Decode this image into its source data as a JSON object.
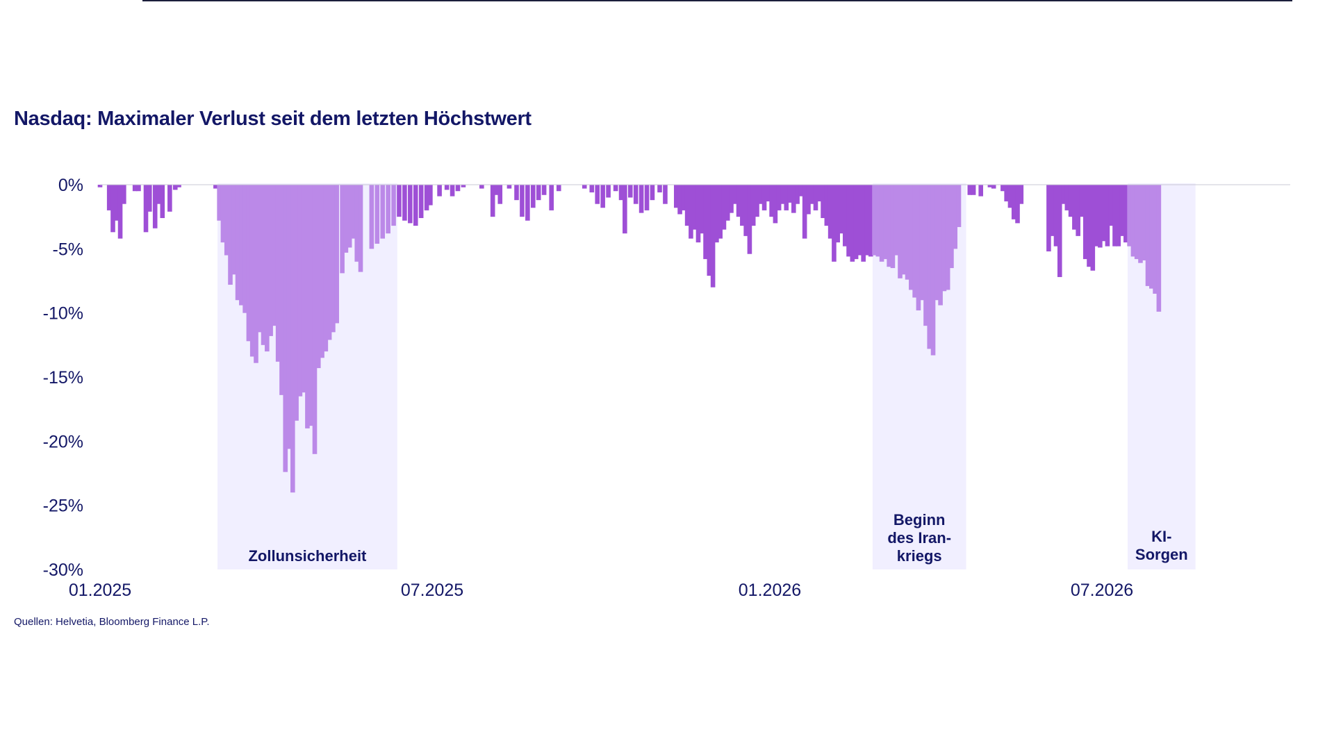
{
  "title": "Nasdaq: Maximaler Verlust seit dem letzten Höchstwert",
  "source": "Quellen: Helvetia, Bloomberg Finance L.P.",
  "colors": {
    "title": "#131766",
    "bar_dark": "#9e4fd6",
    "bar_light": "#bb89e8",
    "shade": "#f1efff",
    "axis_text": "#131766"
  },
  "chart_data": {
    "type": "bar",
    "title": "Nasdaq: Maximaler Verlust seit dem letzten Höchstwert",
    "xlabel": "",
    "ylabel": "",
    "ylim": [
      -30,
      0
    ],
    "y_ticks": [
      0,
      -5,
      -10,
      -15,
      -20,
      -25,
      -30
    ],
    "y_tick_labels": [
      "0%",
      "-5%",
      "-10%",
      "-15%",
      "-20%",
      "-25%",
      "-30%"
    ],
    "x_ticks": [
      "2025-01-01",
      "2025-07-01",
      "2026-01-01",
      "2026-07-01"
    ],
    "x_tick_labels": [
      "01.2025",
      "07.2025",
      "01.2026",
      "07.2026"
    ],
    "x_range": [
      "2025-01-01",
      "2026-08-15"
    ],
    "grid": false,
    "legend": "none",
    "shaded_periods": [
      {
        "start": "2025-03-06",
        "end": "2025-06-12",
        "label": "Zollunsicherheit"
      },
      {
        "start": "2026-02-26",
        "end": "2026-04-18",
        "label": "Beginn des Iran-kriegs"
      },
      {
        "start": "2026-07-15",
        "end": "2026-08-21",
        "label": "KI-Sorgen"
      }
    ],
    "series": [
      {
        "points": [
          {
            "x": "2025-01-01",
            "y": -0.2
          },
          {
            "x": "2025-01-06",
            "y": -2.0
          },
          {
            "x": "2025-01-08",
            "y": -3.7
          },
          {
            "x": "2025-01-10",
            "y": -2.8
          },
          {
            "x": "2025-01-12",
            "y": -4.2
          },
          {
            "x": "2025-01-14",
            "y": -1.5
          },
          {
            "x": "2025-01-20",
            "y": -0.5
          },
          {
            "x": "2025-01-22",
            "y": -0.5
          },
          {
            "x": "2025-01-26",
            "y": -3.7
          },
          {
            "x": "2025-01-28",
            "y": -2.1
          },
          {
            "x": "2025-01-31",
            "y": -3.4
          },
          {
            "x": "2025-02-02",
            "y": -1.5
          },
          {
            "x": "2025-02-04",
            "y": -2.6
          },
          {
            "x": "2025-02-08",
            "y": -2.1
          },
          {
            "x": "2025-02-11",
            "y": -0.4
          },
          {
            "x": "2025-02-13",
            "y": -0.2
          },
          {
            "x": "2025-03-05",
            "y": -0.3
          },
          {
            "x": "2025-03-07",
            "y": -2.8
          },
          {
            "x": "2025-03-09",
            "y": -4.5
          },
          {
            "x": "2025-03-11",
            "y": -5.5
          },
          {
            "x": "2025-03-13",
            "y": -7.8
          },
          {
            "x": "2025-03-15",
            "y": -7.0
          },
          {
            "x": "2025-03-17",
            "y": -9.0
          },
          {
            "x": "2025-03-19",
            "y": -9.4
          },
          {
            "x": "2025-03-21",
            "y": -10.0
          },
          {
            "x": "2025-03-23",
            "y": -12.2
          },
          {
            "x": "2025-03-25",
            "y": -13.4
          },
          {
            "x": "2025-03-27",
            "y": -13.9
          },
          {
            "x": "2025-03-29",
            "y": -11.5
          },
          {
            "x": "2025-03-31",
            "y": -12.5
          },
          {
            "x": "2025-04-02",
            "y": -13.0
          },
          {
            "x": "2025-04-04",
            "y": -11.8
          },
          {
            "x": "2025-04-06",
            "y": -11.0
          },
          {
            "x": "2025-04-08",
            "y": -13.8
          },
          {
            "x": "2025-04-10",
            "y": -16.4
          },
          {
            "x": "2025-04-12",
            "y": -22.4
          },
          {
            "x": "2025-04-14",
            "y": -20.6
          },
          {
            "x": "2025-04-16",
            "y": -24.0
          },
          {
            "x": "2025-04-18",
            "y": -18.4
          },
          {
            "x": "2025-04-20",
            "y": -16.5
          },
          {
            "x": "2025-04-22",
            "y": -16.2
          },
          {
            "x": "2025-04-24",
            "y": -19.0
          },
          {
            "x": "2025-04-26",
            "y": -18.8
          },
          {
            "x": "2025-04-28",
            "y": -21.0
          },
          {
            "x": "2025-04-30",
            "y": -14.3
          },
          {
            "x": "2025-05-02",
            "y": -13.5
          },
          {
            "x": "2025-05-04",
            "y": -13.0
          },
          {
            "x": "2025-05-06",
            "y": -12.1
          },
          {
            "x": "2025-05-08",
            "y": -11.5
          },
          {
            "x": "2025-05-10",
            "y": -10.8
          },
          {
            "x": "2025-05-13",
            "y": -6.9
          },
          {
            "x": "2025-05-15",
            "y": -5.3
          },
          {
            "x": "2025-05-17",
            "y": -4.9
          },
          {
            "x": "2025-05-19",
            "y": -4.2
          },
          {
            "x": "2025-05-21",
            "y": -6.0
          },
          {
            "x": "2025-05-23",
            "y": -6.8
          },
          {
            "x": "2025-05-29",
            "y": -5.0
          },
          {
            "x": "2025-06-01",
            "y": -4.6
          },
          {
            "x": "2025-06-04",
            "y": -4.2
          },
          {
            "x": "2025-06-07",
            "y": -3.8
          },
          {
            "x": "2025-06-10",
            "y": -3.2
          },
          {
            "x": "2025-06-13",
            "y": -2.5
          },
          {
            "x": "2025-06-16",
            "y": -2.8
          },
          {
            "x": "2025-06-19",
            "y": -3.0
          },
          {
            "x": "2025-06-22",
            "y": -3.2
          },
          {
            "x": "2025-06-25",
            "y": -2.6
          },
          {
            "x": "2025-06-28",
            "y": -2.0
          },
          {
            "x": "2025-06-30",
            "y": -1.6
          },
          {
            "x": "2025-07-05",
            "y": -0.9
          },
          {
            "x": "2025-07-09",
            "y": -0.4
          },
          {
            "x": "2025-07-12",
            "y": -0.9
          },
          {
            "x": "2025-07-15",
            "y": -0.5
          },
          {
            "x": "2025-07-18",
            "y": -0.2
          },
          {
            "x": "2025-07-28",
            "y": -0.3
          },
          {
            "x": "2025-08-03",
            "y": -2.5
          },
          {
            "x": "2025-08-05",
            "y": -0.8
          },
          {
            "x": "2025-08-07",
            "y": -1.5
          },
          {
            "x": "2025-08-12",
            "y": -0.3
          },
          {
            "x": "2025-08-16",
            "y": -1.2
          },
          {
            "x": "2025-08-19",
            "y": -2.5
          },
          {
            "x": "2025-08-22",
            "y": -2.8
          },
          {
            "x": "2025-08-25",
            "y": -1.8
          },
          {
            "x": "2025-08-28",
            "y": -1.2
          },
          {
            "x": "2025-08-31",
            "y": -0.8
          },
          {
            "x": "2025-09-04",
            "y": -2.0
          },
          {
            "x": "2025-09-08",
            "y": -0.5
          },
          {
            "x": "2025-09-22",
            "y": -0.3
          },
          {
            "x": "2025-09-26",
            "y": -0.6
          },
          {
            "x": "2025-09-29",
            "y": -1.5
          },
          {
            "x": "2025-10-02",
            "y": -1.8
          },
          {
            "x": "2025-10-05",
            "y": -1.0
          },
          {
            "x": "2025-10-09",
            "y": -0.5
          },
          {
            "x": "2025-10-12",
            "y": -1.2
          },
          {
            "x": "2025-10-14",
            "y": -3.8
          },
          {
            "x": "2025-10-17",
            "y": -1.0
          },
          {
            "x": "2025-10-20",
            "y": -1.5
          },
          {
            "x": "2025-10-23",
            "y": -2.2
          },
          {
            "x": "2025-10-26",
            "y": -2.0
          },
          {
            "x": "2025-10-29",
            "y": -1.2
          },
          {
            "x": "2025-11-02",
            "y": -0.6
          },
          {
            "x": "2025-11-05",
            "y": -1.5
          },
          {
            "x": "2025-11-11",
            "y": -1.8
          },
          {
            "x": "2025-11-13",
            "y": -2.3
          },
          {
            "x": "2025-11-15",
            "y": -2.0
          },
          {
            "x": "2025-11-17",
            "y": -3.2
          },
          {
            "x": "2025-11-19",
            "y": -4.2
          },
          {
            "x": "2025-11-21",
            "y": -3.5
          },
          {
            "x": "2025-11-23",
            "y": -4.5
          },
          {
            "x": "2025-11-25",
            "y": -3.8
          },
          {
            "x": "2025-11-27",
            "y": -5.8
          },
          {
            "x": "2025-11-29",
            "y": -7.1
          },
          {
            "x": "2025-12-01",
            "y": -8.0
          },
          {
            "x": "2025-12-03",
            "y": -4.5
          },
          {
            "x": "2025-12-05",
            "y": -4.2
          },
          {
            "x": "2025-12-07",
            "y": -3.5
          },
          {
            "x": "2025-12-09",
            "y": -2.8
          },
          {
            "x": "2025-12-11",
            "y": -2.2
          },
          {
            "x": "2025-12-13",
            "y": -1.5
          },
          {
            "x": "2025-12-15",
            "y": -2.5
          },
          {
            "x": "2025-12-17",
            "y": -3.2
          },
          {
            "x": "2025-12-19",
            "y": -4.0
          },
          {
            "x": "2025-12-21",
            "y": -5.4
          },
          {
            "x": "2025-12-23",
            "y": -3.2
          },
          {
            "x": "2025-12-25",
            "y": -2.5
          },
          {
            "x": "2025-12-27",
            "y": -1.5
          },
          {
            "x": "2025-12-29",
            "y": -2.0
          },
          {
            "x": "2025-12-31",
            "y": -1.3
          },
          {
            "x": "2026-01-02",
            "y": -2.5
          },
          {
            "x": "2026-01-04",
            "y": -3.0
          },
          {
            "x": "2026-01-06",
            "y": -2.0
          },
          {
            "x": "2026-01-08",
            "y": -1.5
          },
          {
            "x": "2026-01-10",
            "y": -2.0
          },
          {
            "x": "2026-01-12",
            "y": -1.4
          },
          {
            "x": "2026-01-14",
            "y": -2.2
          },
          {
            "x": "2026-01-16",
            "y": -1.5
          },
          {
            "x": "2026-01-18",
            "y": -0.9
          },
          {
            "x": "2026-01-20",
            "y": -4.2
          },
          {
            "x": "2026-01-22",
            "y": -2.3
          },
          {
            "x": "2026-01-24",
            "y": -1.5
          },
          {
            "x": "2026-01-26",
            "y": -2.0
          },
          {
            "x": "2026-01-28",
            "y": -1.3
          },
          {
            "x": "2026-01-30",
            "y": -2.6
          },
          {
            "x": "2026-02-01",
            "y": -3.2
          },
          {
            "x": "2026-02-03",
            "y": -4.2
          },
          {
            "x": "2026-02-05",
            "y": -6.0
          },
          {
            "x": "2026-02-07",
            "y": -4.5
          },
          {
            "x": "2026-02-09",
            "y": -3.8
          },
          {
            "x": "2026-02-11",
            "y": -4.8
          },
          {
            "x": "2026-02-13",
            "y": -5.6
          },
          {
            "x": "2026-02-15",
            "y": -6.0
          },
          {
            "x": "2026-02-17",
            "y": -5.8
          },
          {
            "x": "2026-02-19",
            "y": -5.5
          },
          {
            "x": "2026-02-21",
            "y": -6.0
          },
          {
            "x": "2026-02-23",
            "y": -5.5
          },
          {
            "x": "2026-02-25",
            "y": -5.6
          },
          {
            "x": "2026-02-27",
            "y": -5.5
          },
          {
            "x": "2026-03-01",
            "y": -5.6
          },
          {
            "x": "2026-03-03",
            "y": -6.0
          },
          {
            "x": "2026-03-05",
            "y": -5.8
          },
          {
            "x": "2026-03-07",
            "y": -6.4
          },
          {
            "x": "2026-03-09",
            "y": -6.5
          },
          {
            "x": "2026-03-11",
            "y": -5.5
          },
          {
            "x": "2026-03-13",
            "y": -7.3
          },
          {
            "x": "2026-03-15",
            "y": -7.0
          },
          {
            "x": "2026-03-17",
            "y": -7.4
          },
          {
            "x": "2026-03-19",
            "y": -8.2
          },
          {
            "x": "2026-03-21",
            "y": -8.8
          },
          {
            "x": "2026-03-23",
            "y": -9.8
          },
          {
            "x": "2026-03-25",
            "y": -9.0
          },
          {
            "x": "2026-03-27",
            "y": -11.0
          },
          {
            "x": "2026-03-29",
            "y": -12.8
          },
          {
            "x": "2026-03-31",
            "y": -13.3
          },
          {
            "x": "2026-04-02",
            "y": -9.0
          },
          {
            "x": "2026-04-04",
            "y": -9.4
          },
          {
            "x": "2026-04-06",
            "y": -8.3
          },
          {
            "x": "2026-04-08",
            "y": -8.2
          },
          {
            "x": "2026-04-10",
            "y": -6.5
          },
          {
            "x": "2026-04-12",
            "y": -5.0
          },
          {
            "x": "2026-04-14",
            "y": -3.3
          },
          {
            "x": "2026-04-20",
            "y": -0.8
          },
          {
            "x": "2026-04-22",
            "y": -0.8
          },
          {
            "x": "2026-04-26",
            "y": -0.9
          },
          {
            "x": "2026-05-01",
            "y": -0.2
          },
          {
            "x": "2026-05-03",
            "y": -0.3
          },
          {
            "x": "2026-05-08",
            "y": -0.5
          },
          {
            "x": "2026-05-10",
            "y": -1.3
          },
          {
            "x": "2026-05-12",
            "y": -1.8
          },
          {
            "x": "2026-05-14",
            "y": -2.7
          },
          {
            "x": "2026-05-16",
            "y": -3.0
          },
          {
            "x": "2026-05-18",
            "y": -1.5
          },
          {
            "x": "2026-06-02",
            "y": -5.2
          },
          {
            "x": "2026-06-04",
            "y": -4.0
          },
          {
            "x": "2026-06-06",
            "y": -4.8
          },
          {
            "x": "2026-06-08",
            "y": -7.2
          },
          {
            "x": "2026-06-10",
            "y": -1.5
          },
          {
            "x": "2026-06-12",
            "y": -2.0
          },
          {
            "x": "2026-06-14",
            "y": -2.5
          },
          {
            "x": "2026-06-16",
            "y": -3.5
          },
          {
            "x": "2026-06-18",
            "y": -4.0
          },
          {
            "x": "2026-06-20",
            "y": -2.5
          },
          {
            "x": "2026-06-22",
            "y": -5.8
          },
          {
            "x": "2026-06-24",
            "y": -6.4
          },
          {
            "x": "2026-06-26",
            "y": -6.7
          },
          {
            "x": "2026-06-28",
            "y": -4.8
          },
          {
            "x": "2026-06-30",
            "y": -4.9
          },
          {
            "x": "2026-07-02",
            "y": -4.4
          },
          {
            "x": "2026-07-04",
            "y": -4.8
          },
          {
            "x": "2026-07-06",
            "y": -3.2
          },
          {
            "x": "2026-07-08",
            "y": -4.8
          },
          {
            "x": "2026-07-10",
            "y": -4.8
          },
          {
            "x": "2026-07-12",
            "y": -4.0
          },
          {
            "x": "2026-07-14",
            "y": -4.5
          },
          {
            "x": "2026-07-16",
            "y": -4.8
          },
          {
            "x": "2026-07-18",
            "y": -5.6
          },
          {
            "x": "2026-07-20",
            "y": -5.8
          },
          {
            "x": "2026-07-22",
            "y": -6.1
          },
          {
            "x": "2026-07-24",
            "y": -5.9
          },
          {
            "x": "2026-07-26",
            "y": -7.9
          },
          {
            "x": "2026-07-28",
            "y": -8.1
          },
          {
            "x": "2026-07-30",
            "y": -8.5
          },
          {
            "x": "2026-08-01",
            "y": -9.9
          }
        ]
      }
    ]
  }
}
